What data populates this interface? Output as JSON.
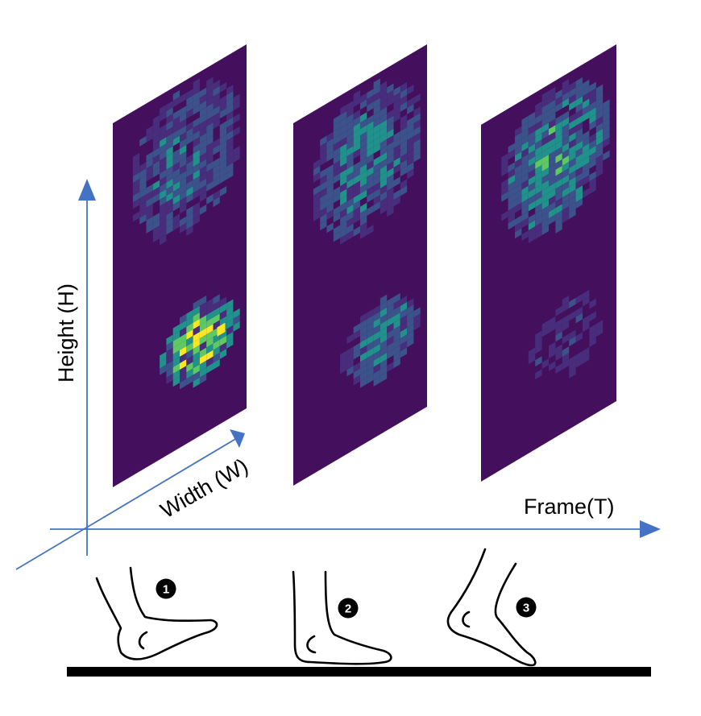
{
  "axes": {
    "height_label": "Height (H)",
    "width_label": "Width (W)",
    "frame_label": "Frame(T)"
  },
  "colors": {
    "axis": "#4472c4",
    "frame_background": "#440f5c",
    "heatmap_low": "#3b528b",
    "heatmap_mid": "#21918c",
    "heatmap_high": "#5ec962",
    "heatmap_peak": "#fde725",
    "ground": "#000000"
  },
  "frames": [
    {
      "id": 1,
      "step_label": "1",
      "toe_intensity": 0.35,
      "heel_intensity": 0.8,
      "pose": "heel-strike"
    },
    {
      "id": 2,
      "step_label": "2",
      "toe_intensity": 0.4,
      "heel_intensity": 0.45,
      "pose": "flat-foot"
    },
    {
      "id": 3,
      "step_label": "3",
      "toe_intensity": 0.5,
      "heel_intensity": 0.15,
      "pose": "toe-off"
    }
  ]
}
